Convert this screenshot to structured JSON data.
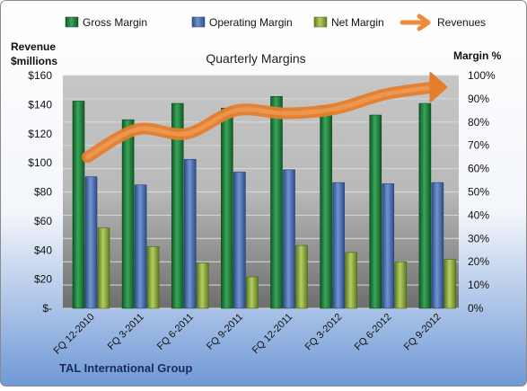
{
  "chart_data": {
    "type": "bar",
    "title": "Quarterly Margins",
    "footer": "TAL International Group",
    "categories": [
      "FQ 12-2010",
      "FQ 3-2011",
      "FQ 6-2011",
      "FQ 9-2011",
      "FQ 12-2011",
      "FQ 3-2012",
      "FQ 6-2012",
      "FQ 9-2012"
    ],
    "y_left": {
      "label_line1": "Revenue",
      "label_line2": "$millions",
      "ylim": [
        0,
        160
      ],
      "ticks": [
        "$-",
        "$20",
        "$40",
        "$60",
        "$80",
        "$100",
        "$120",
        "$140",
        "$160"
      ]
    },
    "y_right": {
      "label": "Margin %",
      "ylim": [
        0,
        100
      ],
      "ticks": [
        "0%",
        "10%",
        "20%",
        "30%",
        "40%",
        "50%",
        "60%",
        "70%",
        "80%",
        "90%",
        "100%"
      ]
    },
    "series": [
      {
        "name": "Gross Margin",
        "kind": "bar",
        "axis": "right",
        "color": "#1e7a3c",
        "values": [
          89,
          81,
          88,
          86,
          91,
          87,
          83,
          88
        ]
      },
      {
        "name": "Operating Margin",
        "kind": "bar",
        "axis": "right",
        "color": "#4a6fb0",
        "values": [
          56.5,
          53,
          64,
          58.5,
          59.5,
          54,
          53.5,
          54
        ]
      },
      {
        "name": "Net Margin",
        "kind": "bar",
        "axis": "right",
        "color": "#8cab3c",
        "values": [
          34.5,
          26.5,
          19.5,
          13.5,
          27,
          24,
          20,
          21
        ]
      },
      {
        "name": "Revenues",
        "kind": "line",
        "axis": "left",
        "color": "#ee8a3a",
        "values": [
          104,
          123,
          120,
          136,
          134,
          137,
          147,
          152
        ]
      }
    ],
    "grid": true,
    "legend": "top"
  }
}
